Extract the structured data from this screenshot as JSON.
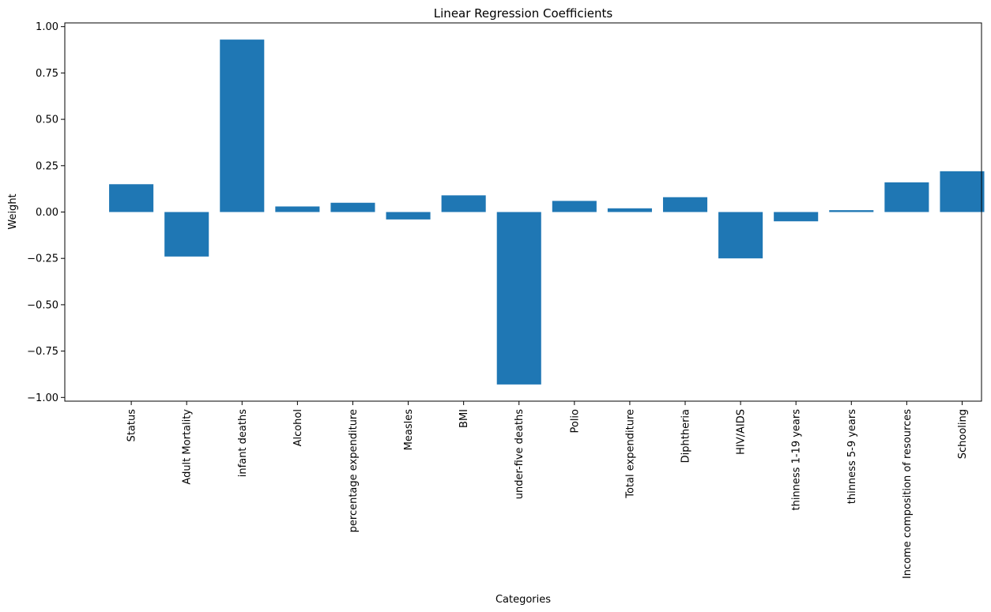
{
  "chart_data": {
    "type": "bar",
    "title": "Linear Regression Coefficients",
    "xlabel": "Categories",
    "ylabel": "Weight",
    "categories": [
      "Status",
      "Adult Mortality",
      "infant deaths",
      "Alcohol",
      "percentage expenditure",
      "Measles",
      "BMI",
      "under-five deaths",
      "Polio",
      "Total expenditure",
      "Diphtheria",
      "HIV/AIDS",
      "thinness  1-19 years",
      "thinness 5-9 years",
      "Income composition of resources",
      "Schooling"
    ],
    "values": [
      0.15,
      -0.24,
      0.93,
      0.03,
      0.05,
      -0.04,
      0.09,
      -0.93,
      0.06,
      0.02,
      0.08,
      -0.25,
      -0.05,
      0.01,
      0.16,
      0.22
    ],
    "ylim": [
      -1.02,
      1.02
    ],
    "yticks": [
      1.0,
      0.75,
      0.5,
      0.25,
      0.0,
      -0.25,
      -0.5,
      -0.75,
      -1.0
    ],
    "ytick_labels": [
      "1.00",
      "0.75",
      "0.50",
      "0.25",
      "0.00",
      "−0.25",
      "−0.50",
      "−0.75",
      "−1.00"
    ],
    "bar_color": "#1f77b4",
    "grid": false,
    "legend": "none"
  }
}
